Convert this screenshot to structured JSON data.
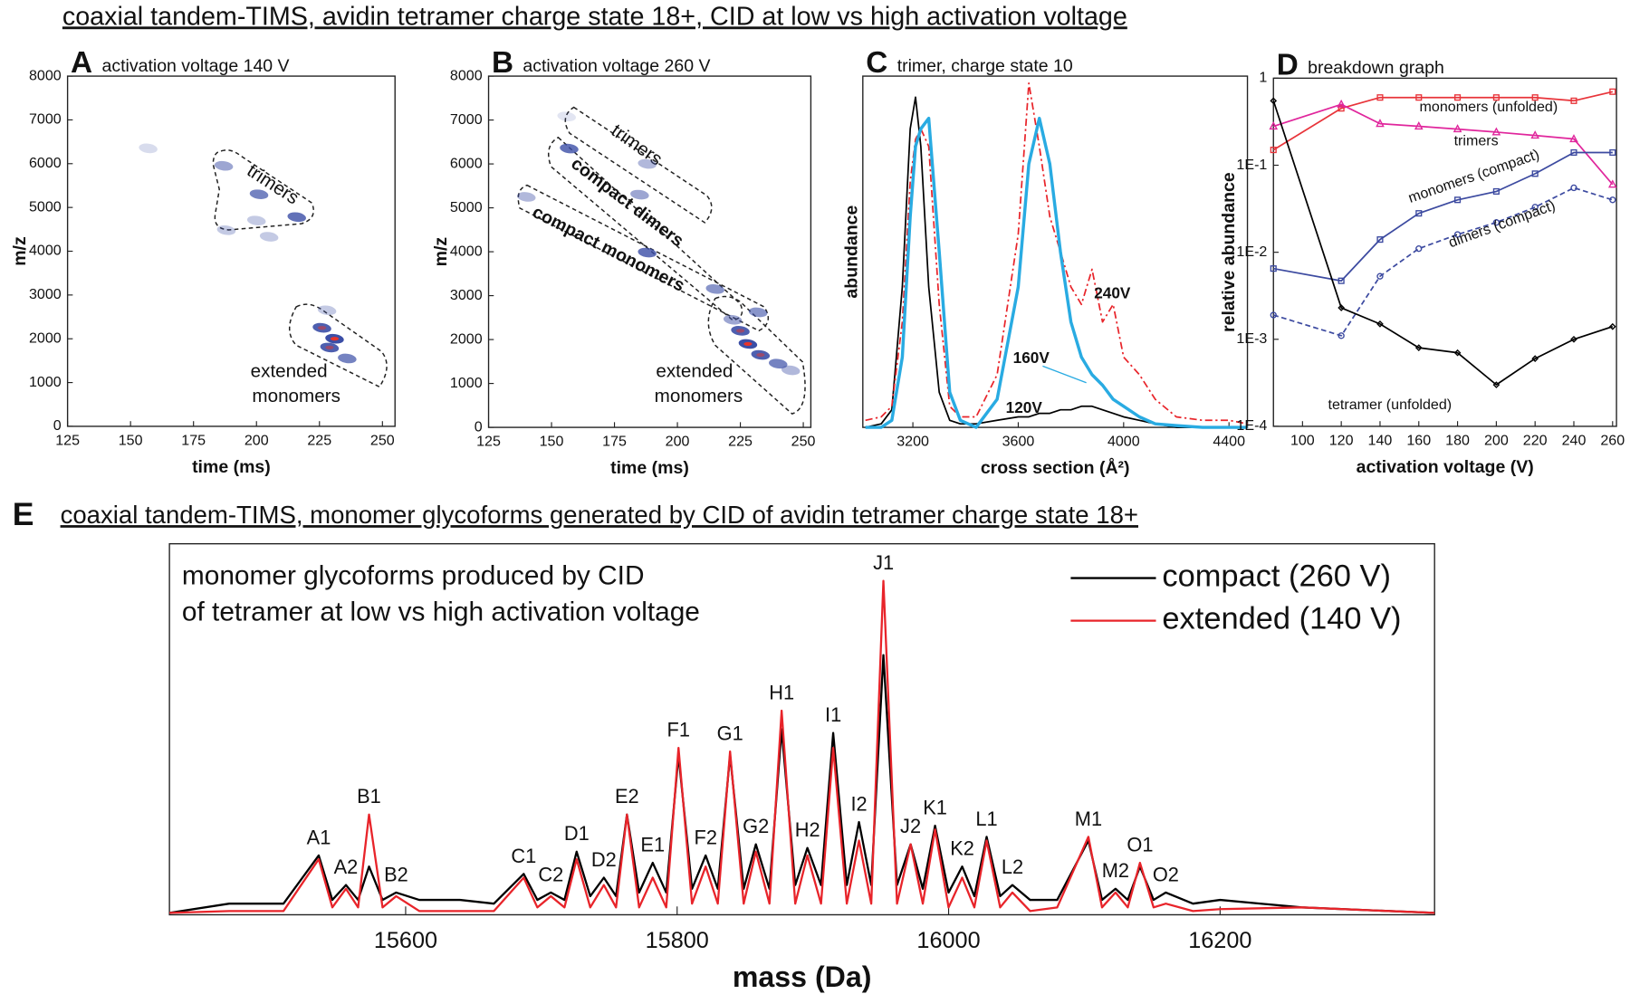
{
  "title": "coaxial tandem-TIMS, avidin tetramer charge state 18+, CID at low vs high activation voltage",
  "chart_data": [
    {
      "type": "scatter",
      "panel": "A",
      "title": "activation voltage 140 V",
      "xlabel": "time (ms)",
      "ylabel": "m/z",
      "xlim": [
        125,
        255
      ],
      "ylim": [
        0,
        8000
      ],
      "xticks": [
        125,
        150,
        175,
        200,
        225,
        250
      ],
      "yticks": [
        0,
        1000,
        2000,
        3000,
        4000,
        5000,
        6000,
        7000,
        8000
      ],
      "color": "#3b4ea6",
      "peak_color": "#e8342a",
      "x": [
        157,
        187,
        201,
        216,
        200,
        188,
        205,
        228,
        226,
        231,
        229,
        236
      ],
      "y": [
        6350,
        5950,
        5300,
        4780,
        4700,
        4480,
        4330,
        2650,
        2250,
        2000,
        1800,
        1550
      ],
      "intensity": [
        0.2,
        0.5,
        0.7,
        0.8,
        0.3,
        0.3,
        0.3,
        0.3,
        0.9,
        1.0,
        0.9,
        0.7
      ],
      "annotations": [
        "trimers",
        "extended",
        "monomers"
      ]
    },
    {
      "type": "scatter",
      "panel": "B",
      "title": "activation voltage 260 V",
      "xlabel": "time (ms)",
      "ylabel": "m/z",
      "xlim": [
        125,
        253
      ],
      "ylim": [
        0,
        8000
      ],
      "xticks": [
        125,
        150,
        175,
        200,
        225,
        250
      ],
      "yticks": [
        0,
        1000,
        2000,
        3000,
        4000,
        5000,
        6000,
        7000,
        8000
      ],
      "color": "#3b4ea6",
      "peak_color": "#e8342a",
      "x": [
        156,
        188,
        157,
        185,
        140,
        188,
        215,
        232,
        222,
        225,
        228,
        233,
        240,
        245
      ],
      "y": [
        7080,
        6000,
        6350,
        5300,
        5250,
        3980,
        3150,
        2620,
        2450,
        2200,
        1900,
        1650,
        1450,
        1300
      ],
      "intensity": [
        0.15,
        0.4,
        0.8,
        0.5,
        0.4,
        0.8,
        0.6,
        0.6,
        0.5,
        0.9,
        1.0,
        0.9,
        0.7,
        0.4
      ],
      "annotations": [
        "trimers",
        "compact dimers",
        "compact monomers",
        "extended",
        "monomers"
      ]
    },
    {
      "type": "line",
      "panel": "C",
      "title": "trimer, charge state 10",
      "xlabel": "cross section (Å²)",
      "ylabel": "abundance",
      "xlim": [
        3010,
        4470
      ],
      "ylim": [
        0,
        1
      ],
      "xticks": [
        3200,
        3600,
        4000,
        4400
      ],
      "x": [
        3020,
        3080,
        3120,
        3160,
        3190,
        3210,
        3230,
        3260,
        3300,
        3340,
        3380,
        3440,
        3520,
        3600,
        3640,
        3680,
        3720,
        3760,
        3800,
        3840,
        3880,
        3920,
        3960,
        4000,
        4060,
        4120,
        4200,
        4300,
        4400,
        4470
      ],
      "series": [
        {
          "name": "120V",
          "color": "#000000",
          "linewidth": 1.5,
          "linestyle": "solid",
          "values": [
            0,
            0.01,
            0.05,
            0.4,
            0.85,
            0.94,
            0.8,
            0.4,
            0.1,
            0.02,
            0.01,
            0.01,
            0.02,
            0.03,
            0.03,
            0.04,
            0.04,
            0.05,
            0.05,
            0.06,
            0.06,
            0.05,
            0.04,
            0.03,
            0.02,
            0.01,
            0,
            0,
            0,
            0
          ]
        },
        {
          "name": "240V",
          "color": "#e8242a",
          "linewidth": 1.5,
          "linestyle": "dashdot",
          "values": [
            0.02,
            0.03,
            0.06,
            0.3,
            0.7,
            0.82,
            0.85,
            0.8,
            0.35,
            0.06,
            0.03,
            0.03,
            0.15,
            0.55,
            0.98,
            0.8,
            0.6,
            0.5,
            0.4,
            0.35,
            0.45,
            0.3,
            0.35,
            0.2,
            0.15,
            0.08,
            0.03,
            0.02,
            0.02,
            0.01
          ]
        },
        {
          "name": "160V",
          "color": "#29abe2",
          "linewidth": 3,
          "linestyle": "solid",
          "values": [
            0,
            0,
            0.02,
            0.2,
            0.6,
            0.8,
            0.85,
            0.88,
            0.5,
            0.1,
            0.02,
            0,
            0.08,
            0.4,
            0.75,
            0.88,
            0.75,
            0.5,
            0.3,
            0.2,
            0.15,
            0.12,
            0.08,
            0.06,
            0.03,
            0.01,
            0.005,
            0,
            0,
            0
          ]
        }
      ]
    },
    {
      "type": "line",
      "panel": "D",
      "title": "breakdown graph",
      "xlabel": "activation voltage (V)",
      "ylabel": "relative abundance",
      "yscale": "log",
      "xlim": [
        85,
        262
      ],
      "ylim": [
        0.0001,
        1
      ],
      "xticks": [
        100,
        120,
        140,
        160,
        180,
        200,
        220,
        240,
        260
      ],
      "yticks": [
        {
          "value": 0.0001,
          "label": "1E-4"
        },
        {
          "value": 0.001,
          "label": "1E-3"
        },
        {
          "value": 0.01,
          "label": "1E-2"
        },
        {
          "value": 0.1,
          "label": "1E-1"
        },
        1
      ],
      "x": [
        85,
        120,
        140,
        160,
        180,
        200,
        220,
        240,
        260
      ],
      "series": [
        {
          "name": "monomers (unfolded)",
          "color": "#e8343a",
          "marker": "square",
          "linestyle": "solid",
          "values": [
            0.15,
            0.45,
            0.6,
            0.6,
            0.6,
            0.6,
            0.6,
            0.55,
            0.7
          ]
        },
        {
          "name": "trimers",
          "color": "#e0269c",
          "marker": "triangle",
          "linestyle": "solid",
          "values": [
            0.28,
            0.5,
            0.3,
            0.28,
            0.26,
            0.24,
            0.22,
            0.2,
            0.06
          ]
        },
        {
          "name": "monomers (compact)",
          "color": "#3c4aa0",
          "marker": "square",
          "linestyle": "solid",
          "values": [
            0.0065,
            0.0047,
            0.014,
            0.028,
            0.04,
            0.05,
            0.08,
            0.14,
            0.14
          ]
        },
        {
          "name": "dimers (compact)",
          "color": "#3c4aa0",
          "marker": "circle",
          "linestyle": "dashed",
          "values": [
            0.0019,
            0.0011,
            0.0053,
            0.011,
            0.016,
            0.022,
            0.033,
            0.055,
            0.04
          ]
        },
        {
          "name": "tetramer (unfolded)",
          "color": "#000000",
          "marker": "diamond",
          "linestyle": "solid",
          "values": [
            0.55,
            0.0023,
            0.0015,
            0.0008,
            0.0007,
            0.0003,
            0.0006,
            0.001,
            0.0014
          ]
        }
      ]
    },
    {
      "type": "line",
      "panel": "E",
      "title": "coaxial tandem-TIMS, monomer glycoforms generated by CID of avidin tetramer charge state 18+",
      "xlabel": "mass (Da)",
      "xlim": [
        15426,
        16358
      ],
      "ylim": [
        0,
        1
      ],
      "xticks": [
        15600,
        15800,
        16000,
        16200
      ],
      "legend": "upper right",
      "annotations": [
        "monomer glycoforms produced by CID",
        "of tetramer at low vs high activation voltage"
      ],
      "x": [
        15426,
        15470,
        15510,
        15536,
        15546,
        15556,
        15565,
        15573,
        15583,
        15593,
        15610,
        15640,
        15665,
        15687,
        15697,
        15707,
        15717,
        15726,
        15736,
        15746,
        15755,
        15763,
        15772,
        15782,
        15792,
        15801,
        15811,
        15821,
        15830,
        15839,
        15849,
        15858,
        15868,
        15877,
        15887,
        15896,
        15906,
        15915,
        15925,
        15934,
        15943,
        15952,
        15962,
        15972,
        15981,
        15990,
        16000,
        16010,
        16019,
        16028,
        16038,
        16047,
        16060,
        16080,
        16103,
        16113,
        16123,
        16132,
        16141,
        16151,
        16160,
        16180,
        16200,
        16260,
        16358
      ],
      "series": [
        {
          "name": "compact (260 V)",
          "color": "#000000",
          "linewidth": 2,
          "linestyle": "solid",
          "values": [
            0.005,
            0.03,
            0.03,
            0.16,
            0.04,
            0.08,
            0.04,
            0.13,
            0.04,
            0.06,
            0.04,
            0.04,
            0.03,
            0.11,
            0.04,
            0.06,
            0.04,
            0.17,
            0.05,
            0.1,
            0.05,
            0.27,
            0.06,
            0.14,
            0.06,
            0.43,
            0.07,
            0.16,
            0.07,
            0.43,
            0.07,
            0.19,
            0.07,
            0.5,
            0.08,
            0.18,
            0.08,
            0.49,
            0.08,
            0.25,
            0.08,
            0.7,
            0.08,
            0.19,
            0.07,
            0.24,
            0.06,
            0.13,
            0.05,
            0.21,
            0.05,
            0.08,
            0.04,
            0.04,
            0.2,
            0.04,
            0.07,
            0.04,
            0.13,
            0.04,
            0.06,
            0.03,
            0.04,
            0.02,
            0.005
          ]
        },
        {
          "name": "extended (140 V)",
          "color": "#e8242a",
          "linewidth": 2,
          "linestyle": "solid",
          "values": [
            0.005,
            0.01,
            0.01,
            0.15,
            0.02,
            0.07,
            0.02,
            0.27,
            0.02,
            0.05,
            0.01,
            0.01,
            0.01,
            0.1,
            0.02,
            0.05,
            0.02,
            0.15,
            0.02,
            0.08,
            0.02,
            0.27,
            0.02,
            0.1,
            0.02,
            0.45,
            0.03,
            0.13,
            0.03,
            0.44,
            0.03,
            0.17,
            0.03,
            0.55,
            0.03,
            0.16,
            0.03,
            0.45,
            0.03,
            0.2,
            0.03,
            0.9,
            0.03,
            0.19,
            0.03,
            0.23,
            0.02,
            0.1,
            0.02,
            0.2,
            0.02,
            0.06,
            0.01,
            0.02,
            0.21,
            0.02,
            0.06,
            0.02,
            0.14,
            0.02,
            0.03,
            0.01,
            0.015,
            0.02,
            0.005
          ]
        }
      ],
      "peaks": [
        {
          "label": "A1",
          "mass": 15536
        },
        {
          "label": "A2",
          "mass": 15556
        },
        {
          "label": "B1",
          "mass": 15573
        },
        {
          "label": "B2",
          "mass": 15593
        },
        {
          "label": "C1",
          "mass": 15687
        },
        {
          "label": "C2",
          "mass": 15707
        },
        {
          "label": "D1",
          "mass": 15726
        },
        {
          "label": "D2",
          "mass": 15746
        },
        {
          "label": "E2",
          "mass": 15763
        },
        {
          "label": "E1",
          "mass": 15782
        },
        {
          "label": "F1",
          "mass": 15801
        },
        {
          "label": "F2",
          "mass": 15821
        },
        {
          "label": "G1",
          "mass": 15839
        },
        {
          "label": "G2",
          "mass": 15858
        },
        {
          "label": "H1",
          "mass": 15877
        },
        {
          "label": "H2",
          "mass": 15896
        },
        {
          "label": "I1",
          "mass": 15915
        },
        {
          "label": "I2",
          "mass": 15934
        },
        {
          "label": "J1",
          "mass": 15952
        },
        {
          "label": "J2",
          "mass": 15972
        },
        {
          "label": "K1",
          "mass": 15990
        },
        {
          "label": "K2",
          "mass": 16010
        },
        {
          "label": "L1",
          "mass": 16028
        },
        {
          "label": "L2",
          "mass": 16047
        },
        {
          "label": "M1",
          "mass": 16103
        },
        {
          "label": "M2",
          "mass": 16123
        },
        {
          "label": "O1",
          "mass": 16141
        },
        {
          "label": "O2",
          "mass": 16160
        }
      ]
    }
  ]
}
